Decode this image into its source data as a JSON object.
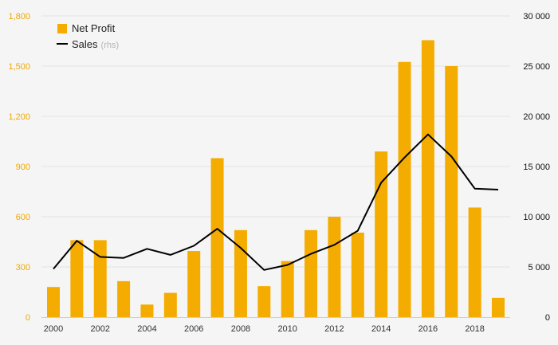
{
  "chart_data": {
    "type": "bar",
    "title": "",
    "x": [
      2000,
      2001,
      2002,
      2003,
      2004,
      2005,
      2006,
      2007,
      2008,
      2009,
      2010,
      2011,
      2012,
      2013,
      2014,
      2015,
      2016,
      2017,
      2018,
      2019
    ],
    "x_tick_labels": [
      "2000",
      "2002",
      "2004",
      "2006",
      "2008",
      "2010",
      "2012",
      "2014",
      "2016",
      "2018"
    ],
    "series": [
      {
        "name": "Net Profit",
        "type": "bar",
        "axis": "left",
        "color": "#f5ac00",
        "values": [
          180,
          460,
          460,
          215,
          75,
          145,
          395,
          950,
          520,
          185,
          335,
          520,
          600,
          505,
          990,
          1525,
          1655,
          1500,
          655,
          115
        ]
      },
      {
        "name": "Sales",
        "name_suffix": "(rhs)",
        "type": "line",
        "axis": "right",
        "color": "#000000",
        "values": [
          4800,
          7600,
          6000,
          5900,
          6800,
          6200,
          7100,
          8800,
          6900,
          4700,
          5200,
          6300,
          7200,
          8600,
          13400,
          15900,
          18200,
          16000,
          12800,
          12700
        ]
      }
    ],
    "y_left": {
      "range": [
        0,
        1800
      ],
      "ticks": [
        0,
        300,
        600,
        900,
        1200,
        1500,
        1800
      ],
      "tick_labels": [
        "0",
        "300",
        "600",
        "900",
        "1,200",
        "1,500",
        "1,800"
      ],
      "color": "#f0a800"
    },
    "y_right": {
      "range": [
        0,
        30000
      ],
      "ticks": [
        0,
        5000,
        10000,
        15000,
        20000,
        25000,
        30000
      ],
      "tick_labels": [
        "0",
        "5 000",
        "10 000",
        "15 000",
        "20 000",
        "25 000",
        "30 000"
      ],
      "color": "#111111"
    },
    "grid": true,
    "legend": {
      "position": "top-left",
      "items": [
        "Net Profit",
        "Sales"
      ]
    }
  }
}
